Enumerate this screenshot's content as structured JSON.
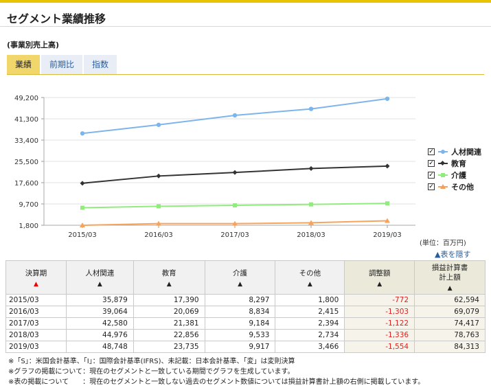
{
  "header": {
    "title": "セグメント業績推移",
    "subtitle": "(事業別売上高)"
  },
  "tabs": [
    {
      "label": "業績",
      "active": true
    },
    {
      "label": "前期比",
      "active": false
    },
    {
      "label": "指数",
      "active": false
    }
  ],
  "chart_data": {
    "type": "line",
    "categories": [
      "2015/03",
      "2016/03",
      "2017/03",
      "2018/03",
      "2019/03"
    ],
    "y_ticks": [
      "49,200",
      "41,300",
      "33,400",
      "25,500",
      "17,600",
      "9,700",
      "1,800"
    ],
    "ylim": [
      1800,
      49200
    ],
    "grid": true,
    "legend_position": "right",
    "series": [
      {
        "name": "人材関連",
        "values": [
          35879,
          39064,
          42580,
          44976,
          48748
        ],
        "color": "#7cb5ec",
        "marker": "circle"
      },
      {
        "name": "教育",
        "values": [
          17390,
          20069,
          21381,
          22856,
          23735
        ],
        "color": "#333333",
        "marker": "diamond"
      },
      {
        "name": "介護",
        "values": [
          8297,
          8834,
          9184,
          9533,
          9917
        ],
        "color": "#90ed7d",
        "marker": "square"
      },
      {
        "name": "その他",
        "values": [
          1800,
          2415,
          2394,
          2734,
          3466
        ],
        "color": "#f7a35c",
        "marker": "triangle"
      }
    ]
  },
  "unit_note": "(単位：百万円)",
  "toggle_table_label": "▲表を隠す",
  "table": {
    "headers": [
      {
        "label": "決算期",
        "sort": "▲",
        "sort_active": true
      },
      {
        "label": "人材関連",
        "sort": "▲"
      },
      {
        "label": "教育",
        "sort": "▲"
      },
      {
        "label": "介護",
        "sort": "▲"
      },
      {
        "label": "その他",
        "sort": "▲"
      },
      {
        "label": "調整額",
        "sort": "▲"
      },
      {
        "label": "損益計算書\n計上額",
        "sort": "▲"
      }
    ],
    "rows": [
      [
        "2015/03",
        "35,879",
        "17,390",
        "8,297",
        "1,800",
        "-772",
        "62,594"
      ],
      [
        "2016/03",
        "39,064",
        "20,069",
        "8,834",
        "2,415",
        "-1,303",
        "69,079"
      ],
      [
        "2017/03",
        "42,580",
        "21,381",
        "9,184",
        "2,394",
        "-1,122",
        "74,417"
      ],
      [
        "2018/03",
        "44,976",
        "22,856",
        "9,533",
        "2,734",
        "-1,336",
        "78,763"
      ],
      [
        "2019/03",
        "48,748",
        "23,735",
        "9,917",
        "3,466",
        "-1,554",
        "84,313"
      ]
    ]
  },
  "footnotes": [
    "※「S」：米国会計基準、「I」：国際会計基準(IFRS)、未記載：日本会計基準、「変」は変則決算",
    "※グラフの掲載について：現在のセグメントと一致している期間でグラフを生成しています。",
    "※表の掲載について　　：現在のセグメントと一致しない過去のセグメント数値については損益計算書計上額の右側に掲載しています。"
  ]
}
